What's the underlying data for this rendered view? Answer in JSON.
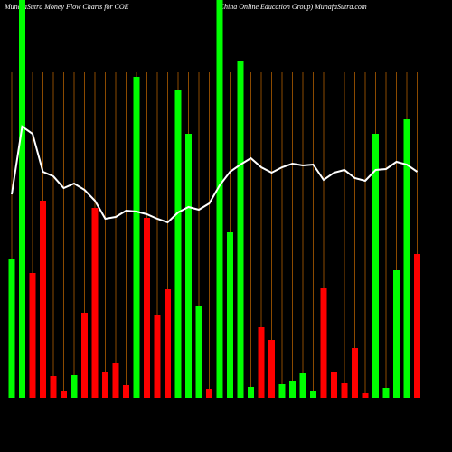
{
  "chart_data": {
    "type": "bar",
    "title": "MunafaSutra  Money Flow  Charts for COE",
    "subtitle": "(China  Online   Education  Group) MunafaSutra.com",
    "categories": [
      null,
      null,
      null,
      null,
      null,
      null,
      null,
      null,
      null,
      null,
      null,
      null,
      null,
      null,
      null,
      null,
      null,
      null,
      null,
      null,
      null,
      null,
      null,
      null,
      null,
      null,
      null,
      null,
      null,
      null,
      null,
      null,
      null,
      null,
      null,
      null,
      null,
      null,
      null,
      null
    ],
    "values": [
      153,
      440,
      138,
      218,
      24,
      8,
      25,
      94,
      210,
      29,
      39,
      14,
      355,
      199,
      91,
      120,
      340,
      292,
      101,
      10,
      440,
      183,
      372,
      12,
      78,
      64,
      15,
      19,
      27,
      7,
      121,
      28,
      16,
      55,
      5,
      292,
      11,
      141,
      308,
      159
    ],
    "colors": [
      "#00ff00",
      "#00ff00",
      "#ff0000",
      "#ff0000",
      "#ff0000",
      "#ff0000",
      "#00ff00",
      "#ff0000",
      "#ff0000",
      "#ff0000",
      "#ff0000",
      "#ff0000",
      "#00ff00",
      "#ff0000",
      "#ff0000",
      "#ff0000",
      "#00ff00",
      "#00ff00",
      "#00ff00",
      "#ff0000",
      "#00ff00",
      "#00ff00",
      "#00ff00",
      "#00ff00",
      "#ff0000",
      "#ff0000",
      "#00ff00",
      "#00ff00",
      "#00ff00",
      "#00ff00",
      "#ff0000",
      "#ff0000",
      "#ff0000",
      "#ff0000",
      "#ff0000",
      "#00ff00",
      "#00ff00",
      "#00ff00",
      "#00ff00",
      "#ff0000"
    ],
    "line": {
      "color": "#ffffff",
      "values": [
        225,
        300,
        292,
        250,
        245,
        232,
        237,
        230,
        218,
        198,
        200,
        207,
        206,
        203,
        198,
        194,
        205,
        211,
        208,
        215,
        235,
        250,
        258,
        265,
        255,
        249,
        255,
        259,
        257,
        258,
        241,
        249,
        252,
        243,
        240,
        252,
        253,
        261,
        258,
        250
      ]
    },
    "ylim": [
      0,
      440
    ],
    "grid": true,
    "grid_color": "#8b4a00",
    "background": "#000000"
  }
}
